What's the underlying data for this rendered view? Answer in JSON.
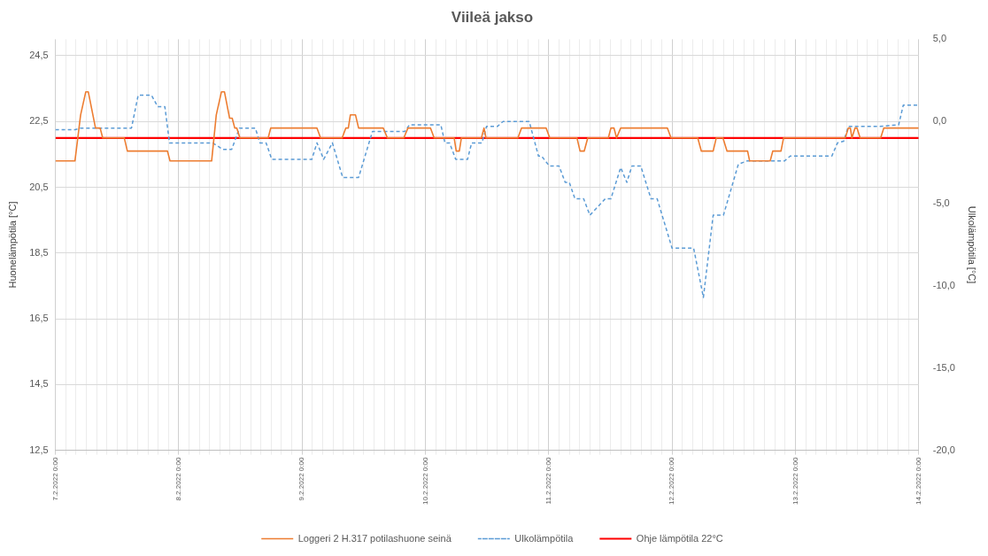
{
  "chart_data": {
    "type": "line",
    "title": "Viileä jakso",
    "ylabel": "Huonelämpötila [°C]",
    "y2label": "Ulkolämpötila [°C]",
    "xlim": [
      "2022-02-07T00:00",
      "2022-02-14T00:00"
    ],
    "xticks": [
      {
        "value": "2022-02-07T00:00",
        "label": "7.2.2022 0:00"
      },
      {
        "value": "2022-02-07T02:00",
        "label": null
      },
      {
        "value": "2022-02-07T04:00",
        "label": null
      },
      {
        "value": "2022-02-07T06:00",
        "label": null
      },
      {
        "value": "2022-02-07T08:00",
        "label": null
      },
      {
        "value": "2022-02-07T10:00",
        "label": null
      },
      {
        "value": "2022-02-07T12:00",
        "label": null
      },
      {
        "value": "2022-02-07T14:00",
        "label": null
      },
      {
        "value": "2022-02-07T16:00",
        "label": null
      },
      {
        "value": "2022-02-07T18:00",
        "label": null
      },
      {
        "value": "2022-02-07T20:00",
        "label": null
      },
      {
        "value": "2022-02-07T22:00",
        "label": null
      },
      {
        "value": "2022-02-08T00:00",
        "label": "8.2.2022 0:00"
      },
      {
        "value": "2022-02-08T02:00",
        "label": null
      },
      {
        "value": "2022-02-08T04:00",
        "label": null
      },
      {
        "value": "2022-02-08T06:00",
        "label": null
      },
      {
        "value": "2022-02-08T08:00",
        "label": null
      },
      {
        "value": "2022-02-08T10:00",
        "label": null
      },
      {
        "value": "2022-02-08T12:00",
        "label": null
      },
      {
        "value": "2022-02-08T14:00",
        "label": null
      },
      {
        "value": "2022-02-08T16:00",
        "label": null
      },
      {
        "value": "2022-02-08T18:00",
        "label": null
      },
      {
        "value": "2022-02-08T20:00",
        "label": null
      },
      {
        "value": "2022-02-08T22:00",
        "label": null
      },
      {
        "value": "2022-02-09T00:00",
        "label": "9.2.2022 0:00"
      },
      {
        "value": "2022-02-09T02:00",
        "label": null
      },
      {
        "value": "2022-02-09T04:00",
        "label": null
      },
      {
        "value": "2022-02-09T06:00",
        "label": null
      },
      {
        "value": "2022-02-09T08:00",
        "label": null
      },
      {
        "value": "2022-02-09T10:00",
        "label": null
      },
      {
        "value": "2022-02-09T12:00",
        "label": null
      },
      {
        "value": "2022-02-09T14:00",
        "label": null
      },
      {
        "value": "2022-02-09T16:00",
        "label": null
      },
      {
        "value": "2022-02-09T18:00",
        "label": null
      },
      {
        "value": "2022-02-09T20:00",
        "label": null
      },
      {
        "value": "2022-02-09T22:00",
        "label": null
      },
      {
        "value": "2022-02-10T00:00",
        "label": "10.2.2022 0:00"
      },
      {
        "value": "2022-02-10T02:00",
        "label": null
      },
      {
        "value": "2022-02-10T04:00",
        "label": null
      },
      {
        "value": "2022-02-10T06:00",
        "label": null
      },
      {
        "value": "2022-02-10T08:00",
        "label": null
      },
      {
        "value": "2022-02-10T10:00",
        "label": null
      },
      {
        "value": "2022-02-10T12:00",
        "label": null
      },
      {
        "value": "2022-02-10T14:00",
        "label": null
      },
      {
        "value": "2022-02-10T16:00",
        "label": null
      },
      {
        "value": "2022-02-10T18:00",
        "label": null
      },
      {
        "value": "2022-02-10T20:00",
        "label": null
      },
      {
        "value": "2022-02-10T22:00",
        "label": null
      },
      {
        "value": "2022-02-11T00:00",
        "label": "11.2.2022 0:00"
      },
      {
        "value": "2022-02-11T02:00",
        "label": null
      },
      {
        "value": "2022-02-11T04:00",
        "label": null
      },
      {
        "value": "2022-02-11T06:00",
        "label": null
      },
      {
        "value": "2022-02-11T08:00",
        "label": null
      },
      {
        "value": "2022-02-11T10:00",
        "label": null
      },
      {
        "value": "2022-02-11T12:00",
        "label": null
      },
      {
        "value": "2022-02-11T14:00",
        "label": null
      },
      {
        "value": "2022-02-11T16:00",
        "label": null
      },
      {
        "value": "2022-02-11T18:00",
        "label": null
      },
      {
        "value": "2022-02-11T20:00",
        "label": null
      },
      {
        "value": "2022-02-11T22:00",
        "label": null
      },
      {
        "value": "2022-02-12T00:00",
        "label": "12.2.2022 0:00"
      },
      {
        "value": "2022-02-12T02:00",
        "label": null
      },
      {
        "value": "2022-02-12T04:00",
        "label": null
      },
      {
        "value": "2022-02-12T06:00",
        "label": null
      },
      {
        "value": "2022-02-12T08:00",
        "label": null
      },
      {
        "value": "2022-02-12T10:00",
        "label": null
      },
      {
        "value": "2022-02-12T12:00",
        "label": null
      },
      {
        "value": "2022-02-12T14:00",
        "label": null
      },
      {
        "value": "2022-02-12T16:00",
        "label": null
      },
      {
        "value": "2022-02-12T18:00",
        "label": null
      },
      {
        "value": "2022-02-12T20:00",
        "label": null
      },
      {
        "value": "2022-02-12T22:00",
        "label": null
      },
      {
        "value": "2022-02-13T00:00",
        "label": "13.2.2022 0:00"
      },
      {
        "value": "2022-02-13T02:00",
        "label": null
      },
      {
        "value": "2022-02-13T04:00",
        "label": null
      },
      {
        "value": "2022-02-13T06:00",
        "label": null
      },
      {
        "value": "2022-02-13T08:00",
        "label": null
      },
      {
        "value": "2022-02-13T10:00",
        "label": null
      },
      {
        "value": "2022-02-13T12:00",
        "label": null
      },
      {
        "value": "2022-02-13T14:00",
        "label": null
      },
      {
        "value": "2022-02-13T16:00",
        "label": null
      },
      {
        "value": "2022-02-13T18:00",
        "label": null
      },
      {
        "value": "2022-02-13T20:00",
        "label": null
      },
      {
        "value": "2022-02-13T22:00",
        "label": null
      },
      {
        "value": "2022-02-14T00:00",
        "label": "14.2.2022 0:00"
      }
    ],
    "ylim": [
      12.5,
      25
    ],
    "yticks": [
      {
        "value": 12.5,
        "label": "12,5"
      },
      {
        "value": 14.5,
        "label": "14,5"
      },
      {
        "value": 16.5,
        "label": "16,5"
      },
      {
        "value": 18.5,
        "label": "18,5"
      },
      {
        "value": 20.5,
        "label": "20,5"
      },
      {
        "value": 22.5,
        "label": "22,5"
      },
      {
        "value": 24.5,
        "label": "24,5"
      }
    ],
    "y2lim": [
      -20,
      5
    ],
    "y2ticks": [
      {
        "value": -20,
        "label": "-20,0"
      },
      {
        "value": -15,
        "label": "-15,0"
      },
      {
        "value": -10,
        "label": "-10,0"
      },
      {
        "value": -5,
        "label": "-5,0"
      },
      {
        "value": 0,
        "label": "0,0"
      },
      {
        "value": 5,
        "label": "5,0"
      }
    ],
    "grid": true,
    "legend": "bottom",
    "marker": "none",
    "series": [
      {
        "name": "Loggeri 2 H.317 potilashuone seinä",
        "color": "#ed7d31",
        "line_style": "solid",
        "x": [
          "2022-02-07T00:00",
          "2022-02-07T03:48",
          "2022-02-07T04:54",
          "2022-02-07T05:54",
          "2022-02-07T06:24",
          "2022-02-07T07:48",
          "2022-02-07T08:42",
          "2022-02-07T09:12",
          "2022-02-07T13:24",
          "2022-02-07T14:00",
          "2022-02-07T21:48",
          "2022-02-07T22:18",
          "2022-02-08T06:24",
          "2022-02-08T07:18",
          "2022-02-08T08:18",
          "2022-02-08T08:54",
          "2022-02-08T09:54",
          "2022-02-08T10:24",
          "2022-02-08T10:54",
          "2022-02-08T11:18",
          "2022-02-08T11:54",
          "2022-02-08T17:24",
          "2022-02-08T17:54",
          "2022-02-09T02:54",
          "2022-02-09T03:36",
          "2022-02-09T07:48",
          "2022-02-09T08:30",
          "2022-02-09T09:00",
          "2022-02-09T09:24",
          "2022-02-09T10:24",
          "2022-02-09T11:00",
          "2022-02-09T15:48",
          "2022-02-09T16:36",
          "2022-02-09T19:48",
          "2022-02-09T20:36",
          "2022-02-10T01:00",
          "2022-02-10T01:42",
          "2022-02-10T05:36",
          "2022-02-10T06:00",
          "2022-02-10T06:36",
          "2022-02-10T07:00",
          "2022-02-10T10:54",
          "2022-02-10T11:24",
          "2022-02-10T11:48",
          "2022-02-10T18:00",
          "2022-02-10T18:42",
          "2022-02-10T23:30",
          "2022-02-11T00:12",
          "2022-02-11T05:30",
          "2022-02-11T06:06",
          "2022-02-11T06:54",
          "2022-02-11T07:36",
          "2022-02-11T11:36",
          "2022-02-11T12:06",
          "2022-02-11T12:42",
          "2022-02-11T13:12",
          "2022-02-11T14:00",
          "2022-02-11T23:06",
          "2022-02-11T23:48",
          "2022-02-12T05:00",
          "2022-02-12T05:42",
          "2022-02-12T08:00",
          "2022-02-12T08:36",
          "2022-02-12T09:54",
          "2022-02-12T10:42",
          "2022-02-12T14:42",
          "2022-02-12T15:06",
          "2022-02-12T19:06",
          "2022-02-12T19:36",
          "2022-02-12T21:12",
          "2022-02-12T21:42",
          "2022-02-13T09:42",
          "2022-02-13T10:18",
          "2022-02-13T10:42",
          "2022-02-13T11:00",
          "2022-02-13T11:36",
          "2022-02-13T12:00",
          "2022-02-13T12:36",
          "2022-02-13T16:36",
          "2022-02-13T17:12",
          "2022-02-14T00:00"
        ],
        "values": [
          21.3,
          21.3,
          22.7,
          23.4,
          23.4,
          22.3,
          22.3,
          22,
          22,
          21.6,
          21.6,
          21.3,
          21.3,
          22.7,
          23.4,
          23.4,
          22.6,
          22.6,
          22.3,
          22.3,
          22,
          22,
          22.3,
          22.3,
          22,
          22,
          22.3,
          22.3,
          22.7,
          22.7,
          22.3,
          22.3,
          22,
          22,
          22.3,
          22.3,
          22,
          22,
          21.6,
          21.6,
          22,
          22,
          22.3,
          22,
          22,
          22.3,
          22.3,
          22,
          22,
          21.6,
          21.6,
          22,
          22,
          22.3,
          22.3,
          22,
          22.3,
          22.3,
          22,
          22,
          21.6,
          21.6,
          22,
          22,
          21.6,
          21.6,
          21.3,
          21.3,
          21.6,
          21.6,
          22,
          22,
          22.3,
          22.3,
          22,
          22.3,
          22.3,
          22,
          22,
          22.3,
          22.3
        ]
      },
      {
        "name": "Ulkolämpötila",
        "color": "#5b9bd5",
        "line_style": "dashed",
        "axis": "y2",
        "x": [
          "2022-02-07T00:00",
          "2022-02-07T03:48",
          "2022-02-07T04:54",
          "2022-02-07T14:48",
          "2022-02-07T16:06",
          "2022-02-07T18:42",
          "2022-02-07T19:54",
          "2022-02-07T21:18",
          "2022-02-07T22:12",
          "2022-02-08T06:36",
          "2022-02-08T08:36",
          "2022-02-08T10:18",
          "2022-02-08T11:48",
          "2022-02-08T14:54",
          "2022-02-08T15:48",
          "2022-02-08T17:00",
          "2022-02-08T18:06",
          "2022-02-09T01:54",
          "2022-02-09T02:54",
          "2022-02-09T04:12",
          "2022-02-09T05:54",
          "2022-02-09T07:54",
          "2022-02-09T11:00",
          "2022-02-09T13:42",
          "2022-02-09T20:00",
          "2022-02-09T20:54",
          "2022-02-10T03:00",
          "2022-02-10T03:48",
          "2022-02-10T04:42",
          "2022-02-10T05:54",
          "2022-02-10T08:12",
          "2022-02-10T09:00",
          "2022-02-10T11:00",
          "2022-02-10T11:54",
          "2022-02-10T14:00",
          "2022-02-10T15:06",
          "2022-02-10T20:12",
          "2022-02-10T22:00",
          "2022-02-10T22:36",
          "2022-02-11T00:06",
          "2022-02-11T02:00",
          "2022-02-11T03:12",
          "2022-02-11T04:00",
          "2022-02-11T05:06",
          "2022-02-11T06:48",
          "2022-02-11T08:00",
          "2022-02-11T09:12",
          "2022-02-11T11:00",
          "2022-02-11T12:06",
          "2022-02-11T14:00",
          "2022-02-11T15:12",
          "2022-02-11T16:12",
          "2022-02-11T17:54",
          "2022-02-11T19:54",
          "2022-02-11T21:06",
          "2022-02-12T00:00",
          "2022-02-12T04:12",
          "2022-02-12T06:06",
          "2022-02-12T08:00",
          "2022-02-12T10:00",
          "2022-02-12T12:54",
          "2022-02-12T14:36",
          "2022-02-12T21:54",
          "2022-02-12T23:00",
          "2022-02-13T07:06",
          "2022-02-13T08:12",
          "2022-02-13T09:24",
          "2022-02-13T10:18",
          "2022-02-13T16:18",
          "2022-02-13T20:06",
          "2022-02-13T21:00",
          "2022-02-14T00:00"
        ],
        "values": [
          -0.5,
          -0.5,
          -0.4,
          -0.4,
          1.6,
          1.6,
          0.9,
          0.9,
          -1.3,
          -1.3,
          -1.7,
          -1.7,
          -0.4,
          -0.4,
          -1.3,
          -1.3,
          -2.3,
          -2.3,
          -1.3,
          -2.3,
          -1.3,
          -3.4,
          -3.4,
          -0.6,
          -0.6,
          -0.2,
          -0.2,
          -1.3,
          -1.3,
          -2.3,
          -2.3,
          -1.3,
          -1.3,
          -0.3,
          -0.3,
          0,
          0,
          -2.1,
          -2.1,
          -2.7,
          -2.7,
          -3.7,
          -3.7,
          -4.7,
          -4.7,
          -5.7,
          -5.3,
          -4.7,
          -4.7,
          -2.8,
          -3.7,
          -2.7,
          -2.7,
          -4.7,
          -4.7,
          -7.7,
          -7.7,
          -10.7,
          -5.7,
          -5.7,
          -2.6,
          -2.4,
          -2.4,
          -2.1,
          -2.1,
          -1.3,
          -1.2,
          -0.3,
          -0.3,
          -0.2,
          1,
          1
        ]
      },
      {
        "name": "Ohje lämpötila 22°C",
        "color": "#ff0000",
        "line_style": "solid",
        "x": [
          "2022-02-07T00:00",
          "2022-02-14T00:00"
        ],
        "values": [
          22,
          22
        ]
      }
    ]
  }
}
